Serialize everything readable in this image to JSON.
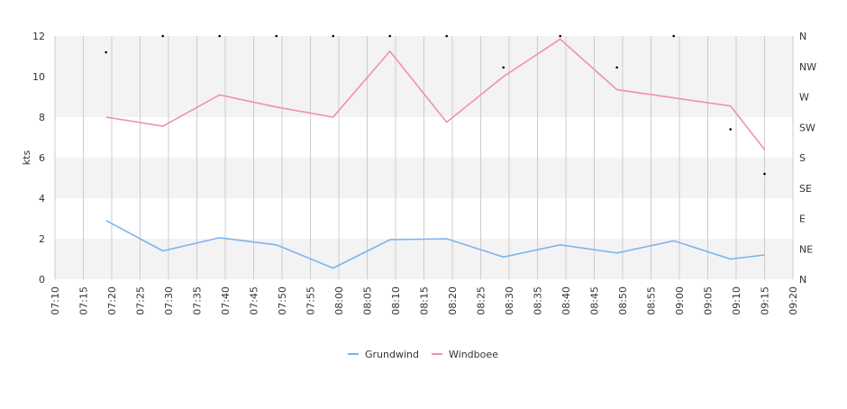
{
  "chart_data": {
    "type": "line",
    "ylabel": "kts",
    "ylim": [
      0,
      12
    ],
    "y_ticks": [
      "0",
      "2",
      "4",
      "6",
      "8",
      "10",
      "12"
    ],
    "y2_ticks": [
      "N",
      "NE",
      "E",
      "SE",
      "S",
      "SW",
      "W",
      "NW",
      "N"
    ],
    "x_ticks": [
      "07:10",
      "07:15",
      "07:20",
      "07:25",
      "07:30",
      "07:35",
      "07:40",
      "07:45",
      "07:50",
      "07:55",
      "08:00",
      "08:05",
      "08:10",
      "08:15",
      "08:20",
      "08:25",
      "08:30",
      "08:35",
      "08:40",
      "08:45",
      "08:50",
      "08:55",
      "09:00",
      "09:05",
      "09:10",
      "09:15",
      "09:20"
    ],
    "x_minutes_range": [
      "07:10",
      "09:20"
    ],
    "series": [
      {
        "name": "Grundwind",
        "color": "#7cb5ec",
        "x": [
          "07:19",
          "07:29",
          "07:39",
          "07:49",
          "07:59",
          "08:09",
          "08:19",
          "08:29",
          "08:39",
          "08:49",
          "08:59",
          "09:09",
          "09:15"
        ],
        "values": [
          2.9,
          1.4,
          2.05,
          1.7,
          0.55,
          1.95,
          2.0,
          1.1,
          1.7,
          1.3,
          1.9,
          1.0,
          1.2
        ]
      },
      {
        "name": "Windboee",
        "color": "#f28fb3",
        "x": [
          "07:19",
          "07:29",
          "07:39",
          "07:49",
          "07:59",
          "08:09",
          "08:19",
          "08:29",
          "08:39",
          "08:49",
          "08:59",
          "09:09",
          "09:15"
        ],
        "values": [
          8.0,
          7.55,
          9.1,
          8.5,
          8.0,
          11.25,
          7.75,
          10.0,
          11.85,
          9.35,
          8.95,
          8.55,
          6.4
        ]
      }
    ],
    "direction_points": {
      "x": [
        "07:19",
        "07:29",
        "07:39",
        "07:49",
        "07:59",
        "08:09",
        "08:19",
        "08:29",
        "08:39",
        "08:49",
        "08:59",
        "09:09",
        "09:15"
      ],
      "values": [
        11.2,
        12.0,
        12.0,
        12.0,
        12.0,
        12.0,
        12.0,
        10.45,
        12.0,
        10.45,
        12.0,
        7.4,
        5.2
      ]
    },
    "grid_bands": true,
    "legend_position": "bottom-center"
  }
}
